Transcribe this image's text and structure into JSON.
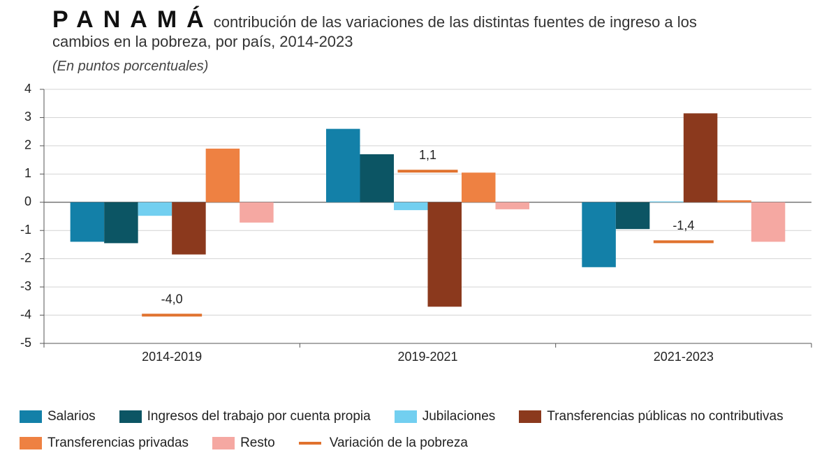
{
  "chart_data": {
    "type": "bar",
    "title": "PANAMÁ",
    "subtitle": "contribución de las variaciones de las distintas fuentes de ingreso a los cambios en la pobreza, por país, 2014-2023",
    "note": "(En puntos porcentuales)",
    "categories": [
      "2014-2019",
      "2019-2021",
      "2021-2023"
    ],
    "series": [
      {
        "name": "Salarios",
        "color": "#1380a8",
        "values": [
          -1.4,
          2.6,
          -2.3
        ]
      },
      {
        "name": "Ingresos del trabajo por cuenta propia",
        "color": "#0c5564",
        "values": [
          -1.45,
          1.7,
          -0.95
        ]
      },
      {
        "name": "Jubilaciones",
        "color": "#72cff0",
        "values": [
          -0.48,
          -0.28,
          0.03
        ]
      },
      {
        "name": "Transferencias públicas no contributivas",
        "color": "#8b391d",
        "values": [
          -1.85,
          -3.7,
          3.15
        ]
      },
      {
        "name": "Transferencias privadas",
        "color": "#ee8142",
        "values": [
          1.9,
          1.05,
          0.07
        ]
      },
      {
        "name": "Resto",
        "color": "#f5a8a2",
        "values": [
          -0.72,
          -0.25,
          -1.4
        ]
      },
      {
        "name": "Variación de la pobreza",
        "color": "#e0722e",
        "kind": "marker",
        "values": [
          -4.0,
          1.1,
          -1.4
        ],
        "value_labels": [
          "-4,0",
          "1,1",
          "-1,4"
        ]
      }
    ],
    "ylim": [
      -5,
      4
    ],
    "yticks": [
      -5,
      -4,
      -3,
      -2,
      -1,
      0,
      1,
      2,
      3,
      4
    ],
    "grid": true
  }
}
